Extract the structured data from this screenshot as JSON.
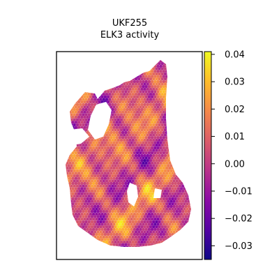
{
  "chart_data": {
    "type": "heatmap",
    "title": "UKF255",
    "subtitle": "ELK3 activity",
    "colormap": "plasma",
    "xlabel": "",
    "ylabel": "",
    "colorbar": {
      "range": [
        -0.035,
        0.041
      ],
      "ticks": [
        0.04,
        0.03,
        0.02,
        0.01,
        0.0,
        -0.01,
        -0.02,
        -0.03
      ],
      "tick_labels": [
        "0.04",
        "0.03",
        "0.02",
        "0.01",
        "0.00",
        "−0.01",
        "−0.02",
        "−0.03"
      ]
    },
    "grid": false,
    "legend": "colorbar-right"
  }
}
